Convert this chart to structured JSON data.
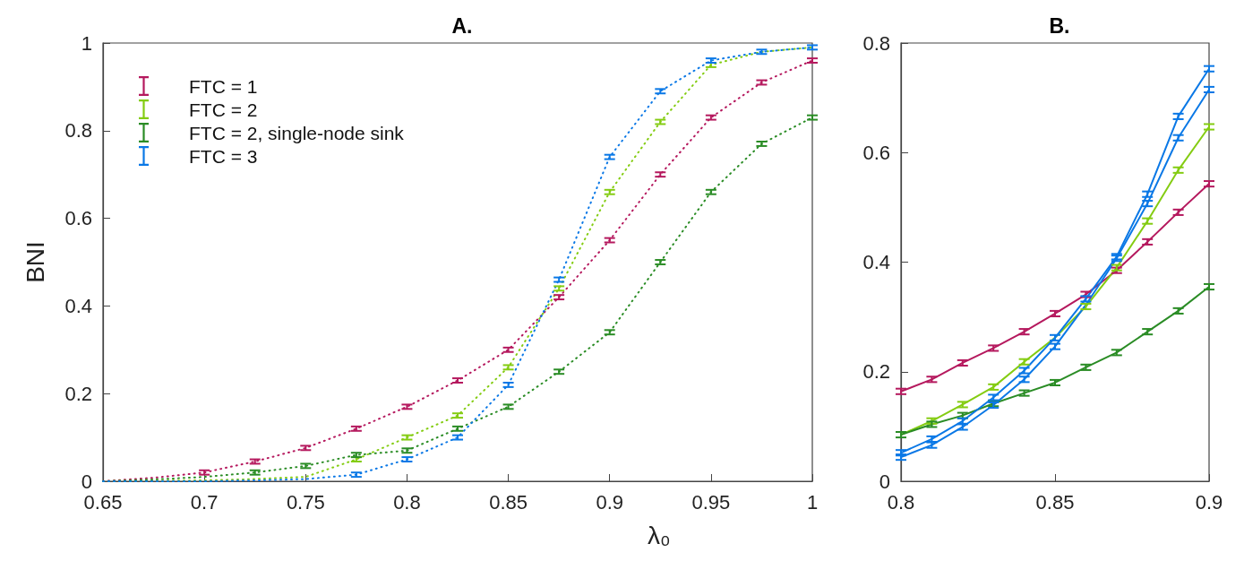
{
  "chart_data": [
    {
      "type": "line",
      "title": "A.",
      "xlabel": "λ₀",
      "ylabel": "BNI",
      "x": [
        0.65,
        0.675,
        0.7,
        0.725,
        0.75,
        0.775,
        0.8,
        0.825,
        0.85,
        0.875,
        0.9,
        0.925,
        0.95,
        0.975,
        1.0
      ],
      "xlim": [
        0.65,
        1
      ],
      "xticks": [
        0.65,
        0.7,
        0.75,
        0.8,
        0.85,
        0.9,
        0.95,
        1
      ],
      "ylim": [
        0,
        1
      ],
      "yticks": [
        0,
        0.2,
        0.4,
        0.6,
        0.8,
        1
      ],
      "grid": false,
      "legend": "top left",
      "marker": "none",
      "line_style": "dotted",
      "series": [
        {
          "name": "FTC = 1",
          "color": "#b5195e",
          "values": [
            0,
            0.008,
            0.02,
            0.045,
            0.076,
            0.12,
            0.17,
            0.23,
            0.3,
            0.42,
            0.55,
            0.7,
            0.83,
            0.91,
            0.96
          ],
          "errors": [
            null,
            null,
            0.005,
            0.005,
            0.005,
            0.005,
            0.005,
            0.005,
            0.005,
            0.005,
            0.005,
            0.005,
            0.005,
            0.005,
            0.005
          ]
        },
        {
          "name": "FTC = 2",
          "color": "#84cc12",
          "values": [
            0,
            0.001,
            0.002,
            0.005,
            0.01,
            0.05,
            0.1,
            0.15,
            0.26,
            0.44,
            0.66,
            0.82,
            0.95,
            0.98,
            0.99
          ],
          "errors": [
            null,
            null,
            null,
            null,
            null,
            0.005,
            0.005,
            0.005,
            0.005,
            0.005,
            0.005,
            0.005,
            0.005,
            null,
            null
          ]
        },
        {
          "name": "FTC = 2, single-node sink",
          "color": "#2a8c25",
          "values": [
            0,
            0.004,
            0.01,
            0.02,
            0.035,
            0.06,
            0.07,
            0.12,
            0.17,
            0.25,
            0.34,
            0.5,
            0.66,
            0.77,
            0.83
          ],
          "errors": [
            null,
            null,
            null,
            0.005,
            0.005,
            0.005,
            0.005,
            0.005,
            0.005,
            0.005,
            0.005,
            0.005,
            0.005,
            0.005,
            0.005
          ]
        },
        {
          "name": "FTC = 3",
          "color": "#0a78e6",
          "values": [
            0,
            0,
            0,
            0.002,
            0.005,
            0.015,
            0.05,
            0.1,
            0.22,
            0.46,
            0.74,
            0.89,
            0.96,
            0.98,
            0.99
          ],
          "errors": [
            null,
            null,
            null,
            null,
            null,
            0.005,
            0.005,
            0.005,
            0.005,
            0.005,
            0.005,
            0.005,
            0.005,
            0.005,
            0.005
          ]
        }
      ]
    },
    {
      "type": "line",
      "title": "B.",
      "x": [
        0.8,
        0.81,
        0.82,
        0.83,
        0.84,
        0.85,
        0.86,
        0.87,
        0.88,
        0.89,
        0.9
      ],
      "xlim": [
        0.8,
        0.9
      ],
      "xticks": [
        0.8,
        0.85,
        0.9
      ],
      "ylim": [
        0,
        0.8
      ],
      "yticks": [
        0,
        0.2,
        0.4,
        0.6,
        0.8
      ],
      "grid": false,
      "marker": "none",
      "line_style": "solid",
      "series": [
        {
          "color": "#b5195e",
          "values": [
            0.164,
            0.186,
            0.216,
            0.243,
            0.273,
            0.306,
            0.341,
            0.385,
            0.437,
            0.491,
            0.543
          ],
          "errors": [
            0.005,
            0.005,
            0.005,
            0.005,
            0.005,
            0.005,
            0.005,
            0.005,
            0.005,
            0.005,
            0.005
          ]
        },
        {
          "color": "#84cc12",
          "values": [
            0.085,
            0.11,
            0.14,
            0.172,
            0.218,
            0.262,
            0.319,
            0.39,
            0.475,
            0.568,
            0.647
          ],
          "errors": [
            null,
            0.005,
            0.005,
            0.005,
            0.005,
            null,
            0.005,
            0.005,
            0.005,
            0.005,
            0.005
          ]
        },
        {
          "color": "#2a8c25",
          "values": [
            0.085,
            0.104,
            0.12,
            0.142,
            0.161,
            0.18,
            0.208,
            0.235,
            0.273,
            0.311,
            0.355
          ],
          "errors": [
            0.005,
            0.005,
            0.005,
            0.005,
            0.005,
            0.005,
            0.005,
            0.005,
            0.005,
            0.005,
            0.005
          ]
        },
        {
          "color": "#0a78e6",
          "values": [
            0.052,
            0.077,
            0.11,
            0.153,
            0.202,
            0.262,
            0.333,
            0.41,
            0.524,
            0.666,
            0.753
          ],
          "errors": [
            0.005,
            0.005,
            0.005,
            0.005,
            0.005,
            0.005,
            0.005,
            0.005,
            0.005,
            0.005,
            0.005
          ]
        },
        {
          "color": "#0a78e6",
          "values": [
            0.044,
            0.066,
            0.099,
            0.139,
            0.186,
            0.246,
            0.322,
            0.407,
            0.507,
            0.627,
            0.715
          ],
          "errors": [
            0.005,
            0.005,
            0.005,
            0.005,
            0.005,
            0.005,
            null,
            0.005,
            0.005,
            0.005,
            0.005
          ]
        }
      ]
    }
  ]
}
